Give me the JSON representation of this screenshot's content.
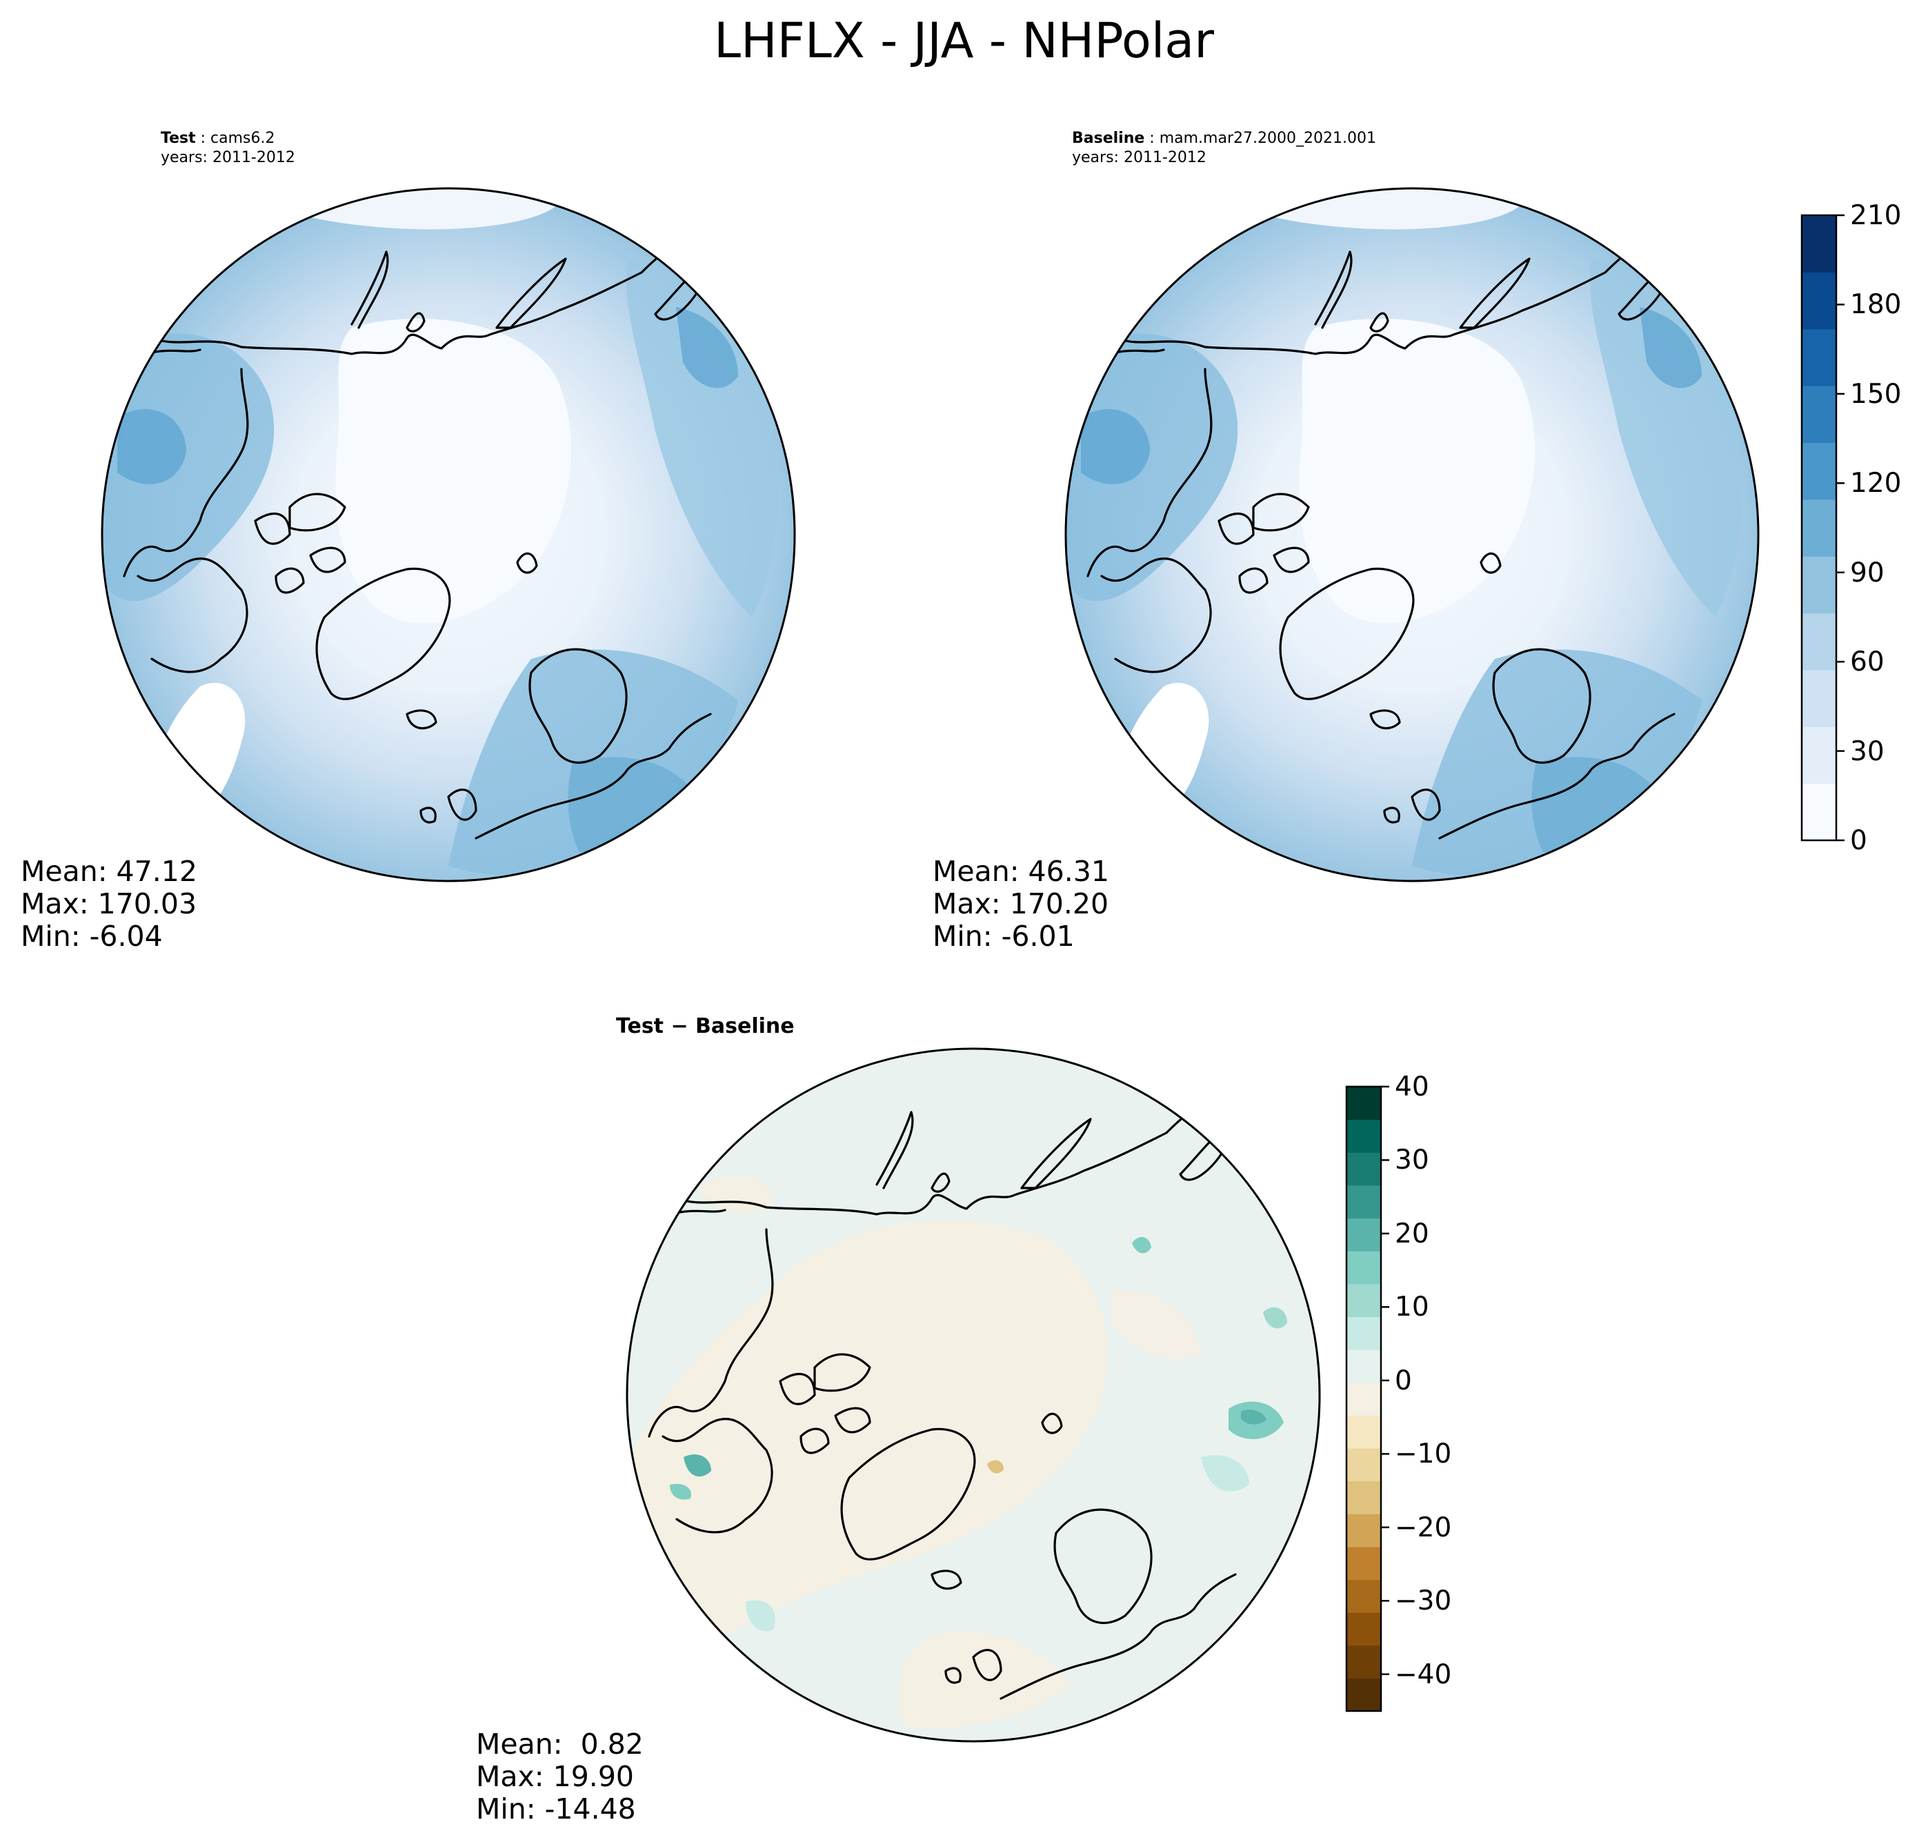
{
  "figure": {
    "title": "LHFLX - JJA - NHPolar"
  },
  "panels": [
    {
      "id": "test",
      "label": "Test",
      "case": "cams6.2",
      "years": "years: 2011-2012",
      "stats": {
        "mean": "Mean: 47.12",
        "max": "Max: 170.03",
        "min": "Min: -6.04"
      }
    },
    {
      "id": "baseline",
      "label": "Baseline",
      "case": "mam.mar27.2000_2021.001",
      "years": "years: 2011-2012",
      "stats": {
        "mean": "Mean: 46.31",
        "max": "Max: 170.20",
        "min": "Min: -6.01"
      }
    },
    {
      "id": "diff",
      "label": "Test − Baseline",
      "stats": {
        "mean": "Mean:  0.82",
        "max": "Max: 19.90",
        "min": "Min: -14.48"
      }
    }
  ],
  "colorbars": {
    "main": {
      "min": 0,
      "max": 210,
      "ticks": [
        "0",
        "30",
        "60",
        "90",
        "120",
        "150",
        "180",
        "210"
      ],
      "colors": [
        "#f7fbff",
        "#e3eef9",
        "#cfe1f2",
        "#b5d4e9",
        "#93c3df",
        "#6daed5",
        "#4b97c9",
        "#2f7ebc",
        "#1864aa",
        "#0a4a90",
        "#08306b"
      ]
    },
    "diff": {
      "min": -45,
      "max": 40,
      "ticks": [
        "−40",
        "−30",
        "−20",
        "−10",
        "0",
        "10",
        "20",
        "30",
        "40"
      ],
      "colors": [
        "#543005",
        "#6f3f08",
        "#8c510a",
        "#a76a1a",
        "#bf812d",
        "#d2a556",
        "#dfc27d",
        "#ebd69f",
        "#f6e8c3",
        "#f5f0e4",
        "#e6f2ef",
        "#c7eae5",
        "#a1d9cf",
        "#80cdc1",
        "#5ab4ac",
        "#35978f",
        "#1a7d74",
        "#01665e",
        "#003c30"
      ]
    }
  }
}
